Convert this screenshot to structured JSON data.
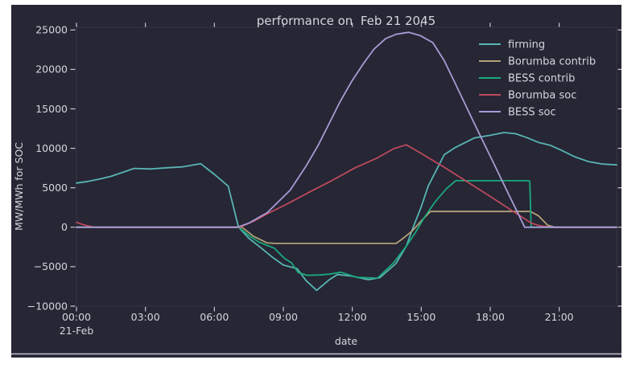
{
  "page": {
    "background": "#ffffff"
  },
  "figure": {
    "background": "#262635",
    "text_color": "#d6d6de",
    "tick_color": "#c9c9d3",
    "spine_color": "#343444",
    "baseline_color": "#bfc3cd",
    "title": "performance on  Feb 21 2045",
    "xlabel": "date",
    "ylabel": "MW/MWh for SOC"
  },
  "chart_data": {
    "type": "line",
    "title": "performance on  Feb 21 2045",
    "xlabel": "date",
    "ylabel": "MW/MWh for SOC",
    "grid": false,
    "legend_position": "upper right",
    "x_axis": {
      "unit": "time of day",
      "range_hours": [
        0,
        23.5
      ],
      "ticks": [
        {
          "hour": 0,
          "label": "00:00",
          "sublabel": "21-Feb"
        },
        {
          "hour": 3,
          "label": "03:00"
        },
        {
          "hour": 6,
          "label": "06:00"
        },
        {
          "hour": 9,
          "label": "09:00"
        },
        {
          "hour": 12,
          "label": "12:00"
        },
        {
          "hour": 15,
          "label": "15:00"
        },
        {
          "hour": 18,
          "label": "18:00"
        },
        {
          "hour": 21,
          "label": "21:00"
        }
      ]
    },
    "y_axis": {
      "range": [
        -10500,
        25450
      ],
      "ticks": [
        {
          "value": 25000,
          "label": "25000"
        },
        {
          "value": 20000,
          "label": "20000"
        },
        {
          "value": 15000,
          "label": "15000"
        },
        {
          "value": 10000,
          "label": "10000"
        },
        {
          "value": 5000,
          "label": "5000"
        },
        {
          "value": 0,
          "label": "0"
        },
        {
          "value": -5000,
          "label": "−5000"
        },
        {
          "value": -10000,
          "label": "−10000"
        }
      ]
    },
    "legend": [
      "firming",
      "Borumba contrib",
      "BESS contrib",
      "Borumba soc",
      "BESS soc"
    ],
    "series": [
      {
        "name": "firming",
        "color": "#58b5b2",
        "points": [
          [
            0,
            5600
          ],
          [
            0.5,
            5800
          ],
          [
            1,
            6100
          ],
          [
            1.5,
            6450
          ],
          [
            2,
            6950
          ],
          [
            2.5,
            7450
          ],
          [
            3.2,
            7380
          ],
          [
            4,
            7550
          ],
          [
            4.6,
            7650
          ],
          [
            5,
            7850
          ],
          [
            5.4,
            8050
          ],
          [
            6,
            6700
          ],
          [
            6.6,
            5200
          ],
          [
            7.05,
            0
          ],
          [
            7.5,
            -1400
          ],
          [
            8,
            -2550
          ],
          [
            8.5,
            -3750
          ],
          [
            9,
            -4800
          ],
          [
            9.6,
            -5250
          ],
          [
            10,
            -6800
          ],
          [
            10.45,
            -8000
          ],
          [
            11,
            -6650
          ],
          [
            11.35,
            -6000
          ],
          [
            12,
            -6200
          ],
          [
            12.7,
            -6650
          ],
          [
            13.2,
            -6400
          ],
          [
            13.9,
            -4600
          ],
          [
            14.35,
            -2400
          ],
          [
            14.65,
            0
          ],
          [
            15,
            2600
          ],
          [
            15.3,
            5200
          ],
          [
            16,
            9200
          ],
          [
            16.45,
            10050
          ],
          [
            17.3,
            11300
          ],
          [
            18,
            11650
          ],
          [
            18.6,
            12000
          ],
          [
            19.1,
            11850
          ],
          [
            19.6,
            11350
          ],
          [
            20.1,
            10750
          ],
          [
            20.6,
            10400
          ],
          [
            21.1,
            9750
          ],
          [
            21.7,
            8900
          ],
          [
            22.3,
            8300
          ],
          [
            22.9,
            8000
          ],
          [
            23.5,
            7900
          ]
        ]
      },
      {
        "name": "Borumba contrib",
        "color": "#b3a078",
        "points": [
          [
            0,
            0
          ],
          [
            7.2,
            0
          ],
          [
            7.7,
            -1150
          ],
          [
            8.3,
            -2000
          ],
          [
            8.7,
            -2060
          ],
          [
            13.9,
            -2060
          ],
          [
            14.15,
            -1550
          ],
          [
            14.6,
            -500
          ],
          [
            15,
            800
          ],
          [
            15.4,
            2000
          ],
          [
            19.75,
            2000
          ],
          [
            20.1,
            1450
          ],
          [
            20.5,
            250
          ],
          [
            20.8,
            0
          ],
          [
            23.5,
            0
          ]
        ]
      },
      {
        "name": "BESS contrib",
        "color": "#1ca87d",
        "points": [
          [
            0,
            0
          ],
          [
            7.05,
            0
          ],
          [
            7.55,
            -1150
          ],
          [
            7.95,
            -1900
          ],
          [
            8.6,
            -2650
          ],
          [
            9.05,
            -3950
          ],
          [
            9.35,
            -4500
          ],
          [
            9.65,
            -5750
          ],
          [
            10.05,
            -6100
          ],
          [
            10.6,
            -6050
          ],
          [
            11,
            -5950
          ],
          [
            11.5,
            -5700
          ],
          [
            12.2,
            -6350
          ],
          [
            13.1,
            -6450
          ],
          [
            13.8,
            -4500
          ],
          [
            14.35,
            -2400
          ],
          [
            14.75,
            -650
          ],
          [
            15.1,
            1100
          ],
          [
            15.6,
            3200
          ],
          [
            16.1,
            4900
          ],
          [
            16.5,
            5900
          ],
          [
            19.6,
            5900
          ],
          [
            19.72,
            5850
          ],
          [
            19.78,
            0
          ],
          [
            23.5,
            0
          ]
        ]
      },
      {
        "name": "Borumba soc",
        "color": "#bc4a5c",
        "points": [
          [
            0,
            620
          ],
          [
            0.35,
            280
          ],
          [
            0.75,
            0
          ],
          [
            7.1,
            0
          ],
          [
            7.7,
            750
          ],
          [
            8.3,
            1700
          ],
          [
            9.1,
            2850
          ],
          [
            10.1,
            4400
          ],
          [
            11.1,
            5900
          ],
          [
            12.1,
            7500
          ],
          [
            13.1,
            8800
          ],
          [
            13.8,
            9950
          ],
          [
            14.35,
            10450
          ],
          [
            15,
            9350
          ],
          [
            16,
            7600
          ],
          [
            17,
            5750
          ],
          [
            18,
            3900
          ],
          [
            19,
            2000
          ],
          [
            19.8,
            500
          ],
          [
            20.2,
            150
          ],
          [
            20.7,
            0
          ],
          [
            23.5,
            0
          ]
        ]
      },
      {
        "name": "BESS soc",
        "color": "#a89bd4",
        "points": [
          [
            0,
            0
          ],
          [
            7,
            0
          ],
          [
            7.5,
            520
          ],
          [
            8.3,
            1850
          ],
          [
            9.3,
            4700
          ],
          [
            10,
            7800
          ],
          [
            10.5,
            10300
          ],
          [
            10.95,
            12900
          ],
          [
            11.45,
            15800
          ],
          [
            12,
            18600
          ],
          [
            12.5,
            20800
          ],
          [
            12.95,
            22600
          ],
          [
            13.45,
            23900
          ],
          [
            13.9,
            24450
          ],
          [
            14.45,
            24700
          ],
          [
            14.95,
            24300
          ],
          [
            15.5,
            23400
          ],
          [
            16,
            21100
          ],
          [
            16.45,
            18400
          ],
          [
            17.3,
            13200
          ],
          [
            18,
            9000
          ],
          [
            18.7,
            4800
          ],
          [
            19.15,
            2100
          ],
          [
            19.5,
            0
          ],
          [
            23.5,
            0
          ]
        ]
      }
    ]
  }
}
